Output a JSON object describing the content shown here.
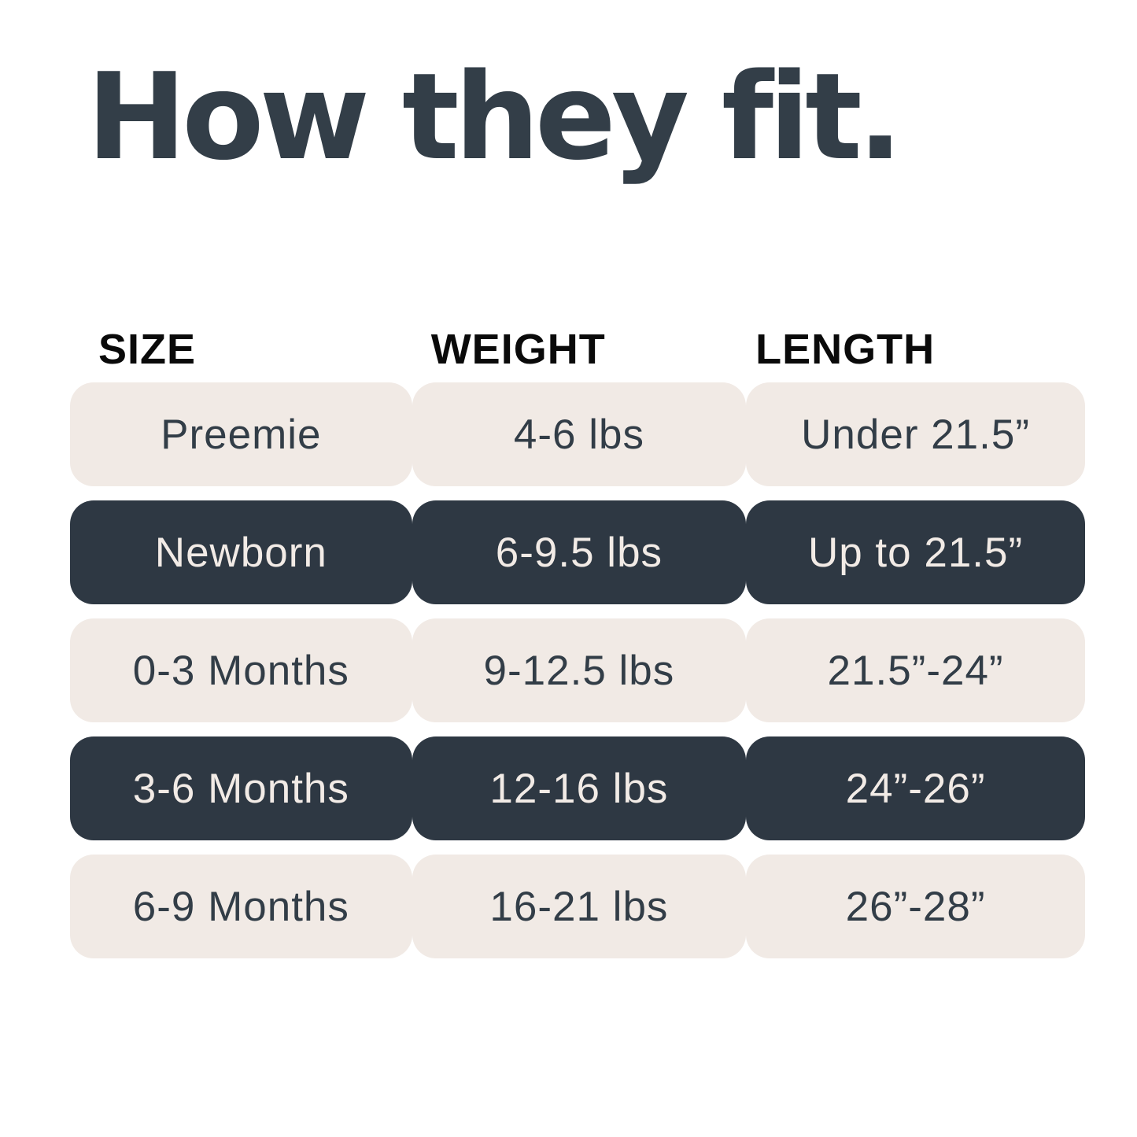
{
  "title": "How they fit.",
  "colors": {
    "page_bg": "#ffffff",
    "title_text": "#333e48",
    "header_text": "#0a0a0a",
    "light_row_bg": "#f1eae5",
    "light_row_text": "#323d47",
    "dark_row_bg": "#2e3843",
    "dark_row_text": "#f2ebe6"
  },
  "table": {
    "headers": [
      "SIZE",
      "WEIGHT",
      "LENGTH"
    ],
    "rows": [
      {
        "size": "Preemie",
        "weight": "4-6 lbs",
        "length": "Under 21.5”",
        "variant": "light"
      },
      {
        "size": "Newborn",
        "weight": "6-9.5 lbs",
        "length": "Up to 21.5”",
        "variant": "dark"
      },
      {
        "size": "0-3 Months",
        "weight": "9-12.5 lbs",
        "length": "21.5”-24”",
        "variant": "light"
      },
      {
        "size": "3-6 Months",
        "weight": "12-16 lbs",
        "length": "24”-26”",
        "variant": "dark"
      },
      {
        "size": "6-9 Months",
        "weight": "16-21 lbs",
        "length": "26”-28”",
        "variant": "light"
      }
    ]
  },
  "chart_data": {
    "type": "table",
    "title": "How they fit.",
    "columns": [
      "SIZE",
      "WEIGHT",
      "LENGTH"
    ],
    "rows": [
      [
        "Preemie",
        "4-6 lbs",
        "Under 21.5”"
      ],
      [
        "Newborn",
        "6-9.5 lbs",
        "Up to 21.5”"
      ],
      [
        "0-3 Months",
        "9-12.5 lbs",
        "21.5”-24”"
      ],
      [
        "3-6 Months",
        "12-16 lbs",
        "24”-26”"
      ],
      [
        "6-9 Months",
        "16-21 lbs",
        "26”-28”"
      ]
    ],
    "layout_hints": {
      "row_style_alternation": [
        "light",
        "dark",
        "light",
        "dark",
        "light"
      ],
      "cell_text_align": "center",
      "header_align": "left"
    }
  }
}
